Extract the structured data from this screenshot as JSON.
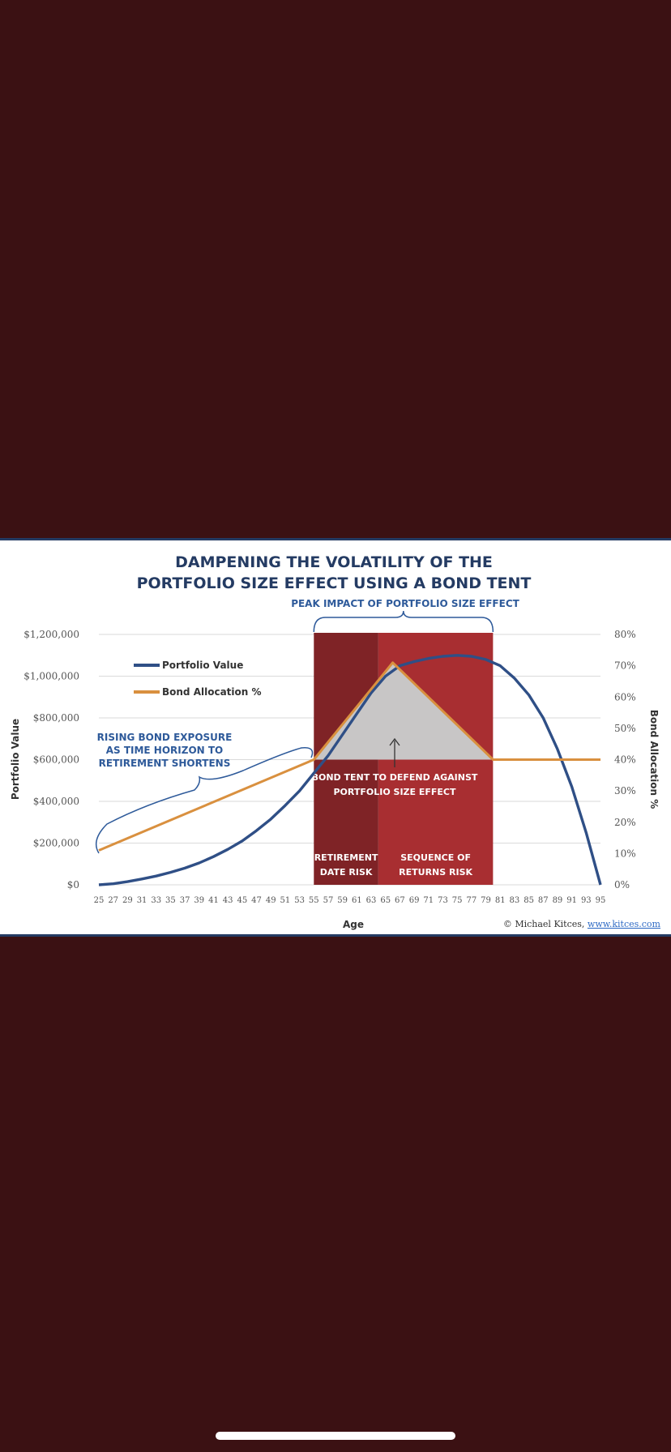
{
  "chart_data": {
    "type": "line",
    "title": "DAMPENING THE VOLATILITY OF THE PORTFOLIO SIZE EFFECT USING A BOND TENT",
    "title_lines": [
      "DAMPENING THE VOLATILITY OF THE",
      "PORTFOLIO SIZE EFFECT USING A BOND TENT"
    ],
    "xlabel": "Age",
    "ylabel": "Portfolio Value",
    "y2label": "Bond Allocation %",
    "x": [
      25,
      27,
      29,
      31,
      33,
      35,
      37,
      39,
      41,
      43,
      45,
      47,
      49,
      51,
      53,
      55,
      57,
      59,
      61,
      63,
      65,
      67,
      69,
      71,
      73,
      75,
      77,
      79,
      81,
      83,
      85,
      87,
      89,
      91,
      93,
      95
    ],
    "xlim": [
      25,
      95
    ],
    "ylim": [
      0,
      1200000
    ],
    "y2lim": [
      0,
      0.8
    ],
    "y_ticks": [
      {
        "value": 0,
        "label": "$0"
      },
      {
        "value": 200000,
        "label": "$200,000"
      },
      {
        "value": 400000,
        "label": "$400,000"
      },
      {
        "value": 600000,
        "label": "$600,000"
      },
      {
        "value": 800000,
        "label": "$800,000"
      },
      {
        "value": 1000000,
        "label": "$1,000,000"
      },
      {
        "value": 1200000,
        "label": "$1,200,000"
      }
    ],
    "y2_ticks": [
      {
        "value": 0,
        "label": "0%"
      },
      {
        "value": 0.1,
        "label": "10%"
      },
      {
        "value": 0.2,
        "label": "20%"
      },
      {
        "value": 0.3,
        "label": "30%"
      },
      {
        "value": 0.4,
        "label": "40%"
      },
      {
        "value": 0.5,
        "label": "50%"
      },
      {
        "value": 0.6,
        "label": "60%"
      },
      {
        "value": 0.7,
        "label": "70%"
      },
      {
        "value": 0.8,
        "label": "80%"
      }
    ],
    "series": [
      {
        "name": "Portfolio Value",
        "axis": "left",
        "color": "#2f4f86",
        "points": [
          [
            25,
            0
          ],
          [
            27,
            5000
          ],
          [
            29,
            15000
          ],
          [
            31,
            28000
          ],
          [
            33,
            42000
          ],
          [
            35,
            60000
          ],
          [
            37,
            80000
          ],
          [
            39,
            105000
          ],
          [
            41,
            135000
          ],
          [
            43,
            170000
          ],
          [
            45,
            210000
          ],
          [
            47,
            260000
          ],
          [
            49,
            315000
          ],
          [
            51,
            380000
          ],
          [
            53,
            450000
          ],
          [
            55,
            535000
          ],
          [
            57,
            620000
          ],
          [
            59,
            720000
          ],
          [
            61,
            820000
          ],
          [
            63,
            920000
          ],
          [
            65,
            1000000
          ],
          [
            67,
            1050000
          ],
          [
            69,
            1070000
          ],
          [
            71,
            1085000
          ],
          [
            73,
            1095000
          ],
          [
            75,
            1100000
          ],
          [
            77,
            1095000
          ],
          [
            79,
            1080000
          ],
          [
            81,
            1050000
          ],
          [
            83,
            990000
          ],
          [
            85,
            910000
          ],
          [
            87,
            800000
          ],
          [
            89,
            650000
          ],
          [
            91,
            470000
          ],
          [
            93,
            250000
          ],
          [
            95,
            0
          ]
        ]
      },
      {
        "name": "Bond Allocation %",
        "axis": "right",
        "color": "#d9903f",
        "points": [
          [
            25,
            0.11
          ],
          [
            55,
            0.4
          ],
          [
            66,
            0.71
          ],
          [
            80,
            0.4
          ],
          [
            95,
            0.4
          ]
        ]
      }
    ],
    "regions": [
      {
        "x0": 55,
        "x1": 64,
        "color": "#7f2326",
        "label_lines": [
          "RETIREMENT",
          "DATE RISK"
        ]
      },
      {
        "x0": 64,
        "x1": 80,
        "color": "#a82e31",
        "label_lines": [
          "SEQUENCE OF",
          "RETURNS RISK"
        ]
      }
    ],
    "tent": {
      "points": [
        [
          55,
          0.4
        ],
        [
          66,
          0.71
        ],
        [
          80,
          0.4
        ]
      ],
      "fill": "#c8c6c6"
    },
    "annotations": {
      "peak": "PEAK IMPACT OF PORTFOLIO SIZE EFFECT",
      "rising_lines": [
        "RISING BOND EXPOSURE",
        "AS TIME HORIZON TO",
        "RETIREMENT SHORTENS"
      ],
      "tent_lines": [
        "BOND TENT TO DEFEND AGAINST",
        "PORTFOLIO SIZE EFFECT"
      ]
    },
    "grid": true,
    "legend_position": "top-left",
    "credit_prefix": "© Michael Kitces, ",
    "credit_link": "www.kitces.com"
  }
}
